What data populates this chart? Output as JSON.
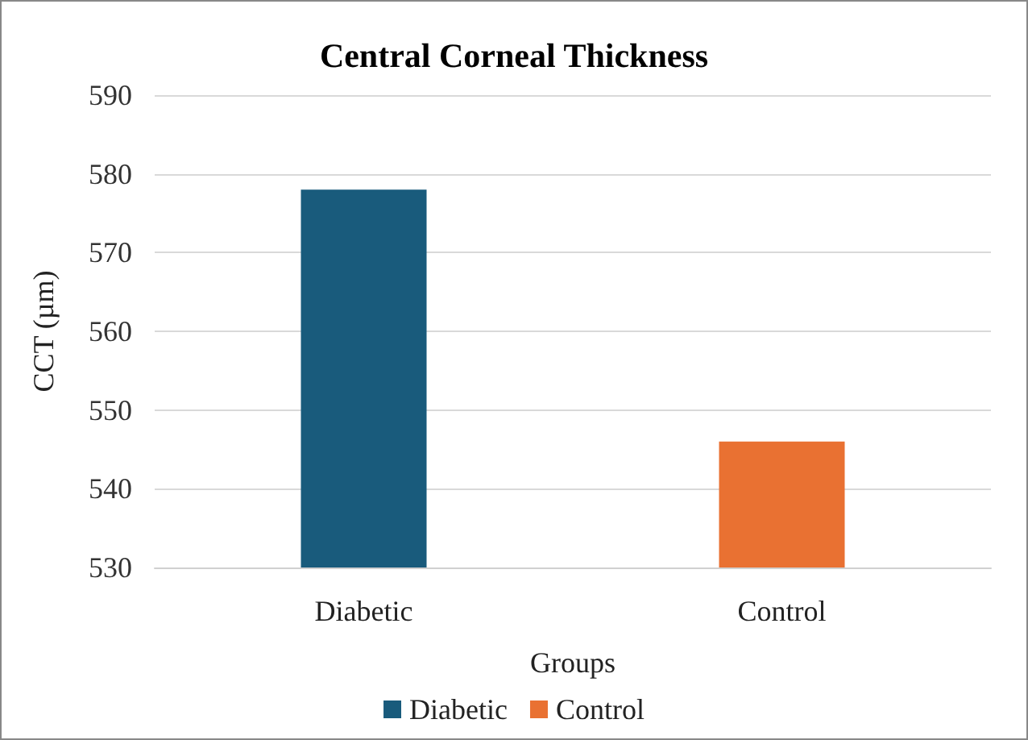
{
  "chart_data": {
    "type": "bar",
    "title": "Central Corneal Thickness",
    "xlabel": "Groups",
    "ylabel": "CCT (µm)",
    "categories": [
      "Diabetic",
      "Control"
    ],
    "series": [
      {
        "name": "Diabetic",
        "color": "#195b7c",
        "values": [
          578,
          null
        ]
      },
      {
        "name": "Control",
        "color": "#e97132",
        "values": [
          null,
          546
        ]
      }
    ],
    "ylim": [
      530,
      590
    ],
    "yticks": [
      530,
      540,
      550,
      560,
      570,
      580,
      590
    ],
    "grid": "y",
    "legend": "bottom"
  }
}
